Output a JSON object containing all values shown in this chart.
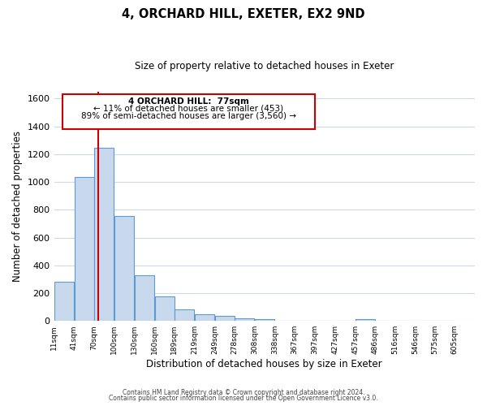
{
  "title": "4, ORCHARD HILL, EXETER, EX2 9ND",
  "subtitle": "Size of property relative to detached houses in Exeter",
  "xlabel": "Distribution of detached houses by size in Exeter",
  "ylabel": "Number of detached properties",
  "bar_left_edges": [
    11,
    41,
    70,
    100,
    130,
    160,
    189,
    219,
    249,
    278,
    308,
    338,
    367,
    397,
    427,
    457,
    486,
    516,
    546,
    575
  ],
  "bar_heights": [
    280,
    1035,
    1245,
    755,
    330,
    175,
    85,
    50,
    37,
    20,
    10,
    0,
    0,
    0,
    0,
    10,
    0,
    0,
    0,
    0
  ],
  "bin_width": 29,
  "tick_labels": [
    "11sqm",
    "41sqm",
    "70sqm",
    "100sqm",
    "130sqm",
    "160sqm",
    "189sqm",
    "219sqm",
    "249sqm",
    "278sqm",
    "308sqm",
    "338sqm",
    "367sqm",
    "397sqm",
    "427sqm",
    "457sqm",
    "486sqm",
    "516sqm",
    "546sqm",
    "575sqm",
    "605sqm"
  ],
  "bar_color": "#c8d9ed",
  "bar_edge_color": "#5b9bd5",
  "vline_x": 77,
  "vline_color": "#cc0000",
  "annotation_title": "4 ORCHARD HILL:  77sqm",
  "annotation_line1": "← 11% of detached houses are smaller (453)",
  "annotation_line2": "89% of semi-detached houses are larger (3,560) →",
  "ylim": [
    0,
    1650
  ],
  "yticks": [
    0,
    200,
    400,
    600,
    800,
    1000,
    1200,
    1400,
    1600
  ],
  "background_color": "#ffffff",
  "grid_color": "#d0d8e4",
  "footer_line1": "Contains HM Land Registry data © Crown copyright and database right 2024.",
  "footer_line2": "Contains public sector information licensed under the Open Government Licence v3.0."
}
